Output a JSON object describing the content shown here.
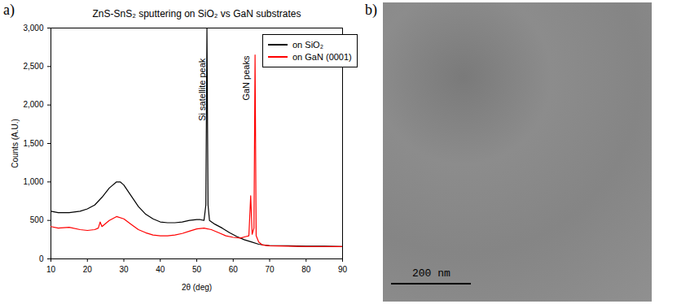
{
  "chart_data": {
    "type": "line",
    "panel_label": "a)",
    "title": "ZnS-SnS₂ sputtering on SiO₂ vs GaN substrates",
    "x_label": "2θ (deg)",
    "y_label": "Counts (A.U.)",
    "xlim": [
      10,
      90
    ],
    "xticks": [
      10,
      20,
      30,
      40,
      50,
      60,
      70,
      80,
      90
    ],
    "ylim": [
      0,
      3000
    ],
    "yticks": [
      0,
      500,
      1000,
      1500,
      2000,
      2500,
      3000
    ],
    "legend": "top-right",
    "annotations": [
      {
        "text": "Si satellite peak",
        "x": 51.6,
        "y": 2200
      },
      {
        "text": "GaN peaks",
        "x": 63.6,
        "y": 2350
      }
    ],
    "series": [
      {
        "name": "on SiO₂",
        "color": "#000000",
        "x": [
          10,
          12,
          15,
          18,
          20,
          22,
          24,
          26,
          28,
          29,
          30,
          32,
          34,
          36,
          38,
          40,
          42,
          44,
          46,
          48,
          50,
          51,
          52,
          52.5,
          52.8,
          53.1,
          53.5,
          55,
          57,
          59,
          61,
          63,
          65,
          67,
          70,
          75,
          80,
          85,
          90
        ],
        "values": [
          620,
          600,
          600,
          620,
          650,
          700,
          800,
          920,
          1000,
          1000,
          960,
          820,
          680,
          580,
          520,
          480,
          470,
          470,
          480,
          500,
          510,
          510,
          500,
          700,
          3000,
          700,
          500,
          450,
          400,
          340,
          290,
          250,
          220,
          190,
          170,
          170,
          165,
          165,
          160
        ]
      },
      {
        "name": "on GaN (0001)",
        "color": "#ff0000",
        "x": [
          10,
          12,
          15,
          18,
          20,
          22,
          23,
          23.5,
          24,
          26,
          28,
          30,
          32,
          34,
          36,
          38,
          40,
          42,
          44,
          46,
          48,
          50,
          52,
          54,
          56,
          58,
          60,
          62,
          63.5,
          64.3,
          64.8,
          65.2,
          65.7,
          66,
          66.3,
          67,
          68,
          70,
          75,
          80,
          85,
          90
        ],
        "values": [
          420,
          400,
          410,
          380,
          370,
          380,
          400,
          480,
          420,
          500,
          550,
          520,
          450,
          380,
          340,
          310,
          300,
          300,
          310,
          330,
          360,
          390,
          400,
          380,
          340,
          300,
          280,
          270,
          290,
          300,
          820,
          320,
          400,
          2650,
          300,
          220,
          180,
          170,
          165,
          160,
          160,
          160
        ]
      }
    ]
  },
  "image_panel": {
    "panel_label": "b)",
    "scale_bar": "200 nm"
  }
}
